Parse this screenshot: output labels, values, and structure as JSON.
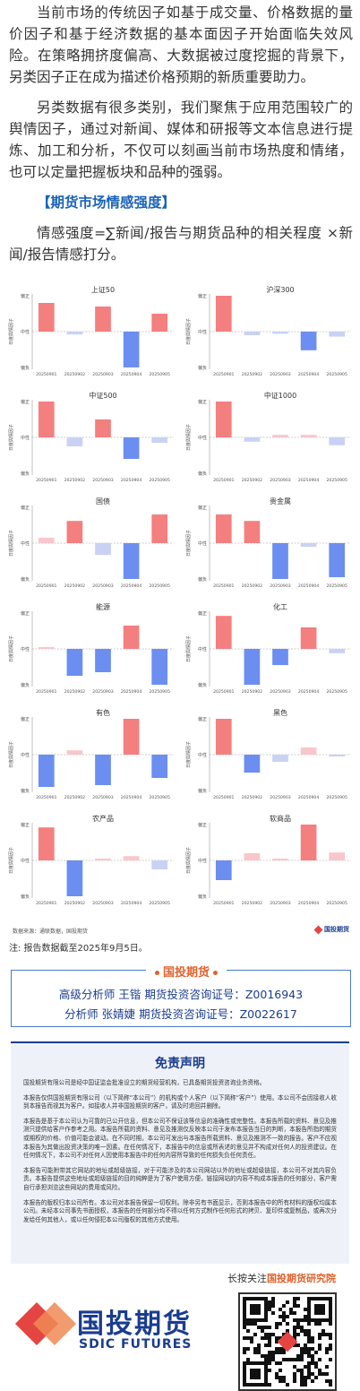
{
  "intro": {
    "para1": "当前市场的传统因子如基于成交量、价格数据的量价因子和基于经济数据的基本面因子开始面临失效风险。在策略拥挤度偏高、大数据被过度挖掘的背景下，另类因子正在成为描述价格预期的新质重要助力。",
    "para2": "另类数据有很多类别，我们聚焦于应用范围较广的舆情因子，通过对新闻、媒体和研报等文本信息进行提炼、加工和分析，不仅可以刻画当前市场热度和情绪，也可以定量把握板块和品种的强弱。",
    "section_title": "【期货市场情感强度】",
    "formula": "情感强度=∑新闻/报告与期货品种的相关程度 ×新闻/报告情感打分。"
  },
  "chart_common": {
    "ylabel": "日度舆情因子",
    "tick_top": "偏正",
    "tick_mid": "中性",
    "tick_bottom": "偏负",
    "dates": [
      "20250901",
      "20250902",
      "20250903",
      "20250904",
      "20250905"
    ],
    "colors": {
      "strong_pos": "#f47f7f",
      "weak_pos": "#f9c6cb",
      "strong_neg": "#6b8ef0",
      "weak_neg": "#c9d2f5"
    }
  },
  "chart_data": [
    {
      "type": "bar",
      "title": "上证50",
      "categories": [
        "20250901",
        "20250902",
        "20250903",
        "20250904",
        "20250905"
      ],
      "values": [
        0.8,
        -0.08,
        0.7,
        -1.0,
        0.5
      ],
      "ylim": [
        -1,
        1
      ]
    },
    {
      "type": "bar",
      "title": "沪深300",
      "categories": [
        "20250901",
        "20250902",
        "20250903",
        "20250904",
        "20250905"
      ],
      "values": [
        1.0,
        -0.1,
        -0.06,
        -0.52,
        -0.14
      ],
      "ylim": [
        -1,
        1
      ]
    },
    {
      "type": "bar",
      "title": "中证500",
      "categories": [
        "20250901",
        "20250902",
        "20250903",
        "20250904",
        "20250905"
      ],
      "values": [
        1.0,
        -0.25,
        0.5,
        -0.6,
        -0.15
      ],
      "ylim": [
        -1,
        1
      ]
    },
    {
      "type": "bar",
      "title": "中证1000",
      "categories": [
        "20250901",
        "20250902",
        "20250903",
        "20250904",
        "20250905"
      ],
      "values": [
        1.0,
        -0.12,
        0.07,
        0.07,
        -0.22
      ],
      "ylim": [
        -1,
        1
      ]
    },
    {
      "type": "bar",
      "title": "国债",
      "categories": [
        "20250901",
        "20250902",
        "20250903",
        "20250904",
        "20250905"
      ],
      "values": [
        0.15,
        0.62,
        -0.33,
        -1.0,
        0.8
      ],
      "ylim": [
        -1,
        1
      ]
    },
    {
      "type": "bar",
      "title": "贵金属",
      "categories": [
        "20250901",
        "20250902",
        "20250903",
        "20250904",
        "20250905"
      ],
      "values": [
        0.8,
        0.62,
        -1.0,
        -0.1,
        -0.95
      ],
      "ylim": [
        -1,
        1
      ]
    },
    {
      "type": "bar",
      "title": "能源",
      "categories": [
        "20250901",
        "20250902",
        "20250903",
        "20250904",
        "20250905"
      ],
      "values": [
        0.05,
        -0.75,
        -0.65,
        0.65,
        -1.0
      ],
      "ylim": [
        -1,
        1
      ]
    },
    {
      "type": "bar",
      "title": "化工",
      "categories": [
        "20250901",
        "20250902",
        "20250903",
        "20250904",
        "20250905"
      ],
      "values": [
        0.92,
        -1.0,
        -0.45,
        0.6,
        -0.12
      ],
      "ylim": [
        -1,
        1
      ]
    },
    {
      "type": "bar",
      "title": "有色",
      "categories": [
        "20250901",
        "20250902",
        "20250903",
        "20250904",
        "20250905"
      ],
      "values": [
        -0.9,
        0.12,
        -0.85,
        1.0,
        -0.65
      ],
      "ylim": [
        -1,
        1
      ]
    },
    {
      "type": "bar",
      "title": "黑色",
      "categories": [
        "20250901",
        "20250902",
        "20250903",
        "20250904",
        "20250905"
      ],
      "values": [
        1.0,
        -0.5,
        -0.2,
        0.2,
        -0.05
      ],
      "ylim": [
        -1,
        1
      ]
    },
    {
      "type": "bar",
      "title": "农产品",
      "categories": [
        "20250901",
        "20250902",
        "20250903",
        "20250904",
        "20250905"
      ],
      "values": [
        0.92,
        -1.0,
        0.05,
        0.12,
        -0.25
      ],
      "ylim": [
        -1,
        1
      ]
    },
    {
      "type": "bar",
      "title": "软商品",
      "categories": [
        "20250901",
        "20250902",
        "20250903",
        "20250904",
        "20250905"
      ],
      "values": [
        -0.55,
        0.2,
        0.05,
        1.0,
        0.22
      ],
      "ylim": [
        -1,
        1
      ]
    }
  ],
  "footer": {
    "source": "数据来源：通联数据，国投期货",
    "source_logo": "国投期货",
    "note": "注: 报告数据截至2025年9月5日。"
  },
  "analysts": {
    "header": "国投期货",
    "line1": "高级分析师  王锴  期货投资咨询证号：Z0016943",
    "line2": "分析师  张婧婕  期货投资咨询证号：Z0022617"
  },
  "disclaimer": {
    "title": "免责声明",
    "p1": "国投期货有限公司是经中国证监会批准设立的期货经营机构，已具备期货投资咨询业务资格。",
    "p2": "本报告仅供国投期货有限公司（以下简称“本公司”）的机构或个人客户（以下简称“客户”）使用。本公司不会因接收人收到本报告而视其为客户。如接收人并非国投期货的客户，请及时退回并删除。",
    "p3": "本报告是基于本公司认为可靠的已公开信息，但本公司不保证该等信息的准确性或完整性。本报告所载的资料、意见及推测只提供给客户作参考之用。本报告所载的资料、意见及推测仅反映本公司于发布本报告当日的判断，本报告所指的期货或期权的价格、价值可能会波动。在不同时期，本公司可发出与本报告所载资料、意见及推测不一致的报告。客户不应视本报告为其做出投资决策的唯一因素。在任何情况下，本报告中的信息或所表述的意见并不构成对任何人的投资建议。在任何情况下，本公司不对任何人因使用本报告中的任何内容所导致的任何损失负任何责任。",
    "p4": "本报告可能附带其它网站的地址或超级链接，对于可能涉及的本公司网站以外的地址或超级链接，本公司不对其内容负责。本报告提供这些地址或超级链接的目的纯粹是为了客户使用方便，链接网站的内容不构成本报告的任何部分，客户需自行承担浏览这些网站的费用或风险。",
    "p5": "本报告的版权归本公司所有。本公司对本报告保留一切权利。除非另有书面显示，否则本报告中的所有材料的版权均属本公司。未经本公司事先书面授权，本报告的任何部分均不得以任何方式制作任何形式的拷贝、复印件或复制品，或再次分发给任何其他人，或以任何侵犯本公司版权的其他方式使用。"
  },
  "bottom": {
    "follow_prefix": "长按关注",
    "follow_name": "国投期货研究院",
    "logo_cn": "国投期货",
    "logo_en": "SDIC FUTURES"
  }
}
